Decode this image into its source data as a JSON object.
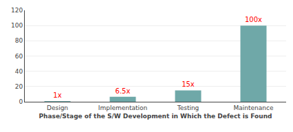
{
  "chart_data": {
    "type": "bar",
    "categories": [
      "Design",
      "Implementation",
      "Testing",
      "Maintenance"
    ],
    "values": [
      1,
      6.5,
      15,
      100
    ],
    "value_labels": [
      "1x",
      "6.5x",
      "15x",
      "100x"
    ],
    "data_labels": true,
    "color": "#6fa8a8",
    "xlabel": "Phase/Stage of the S/W Development in Which the Defect is Found",
    "ylim": [
      0,
      120
    ],
    "yticks": [
      0,
      20,
      40,
      60,
      80,
      100,
      120
    ],
    "grid": true
  }
}
